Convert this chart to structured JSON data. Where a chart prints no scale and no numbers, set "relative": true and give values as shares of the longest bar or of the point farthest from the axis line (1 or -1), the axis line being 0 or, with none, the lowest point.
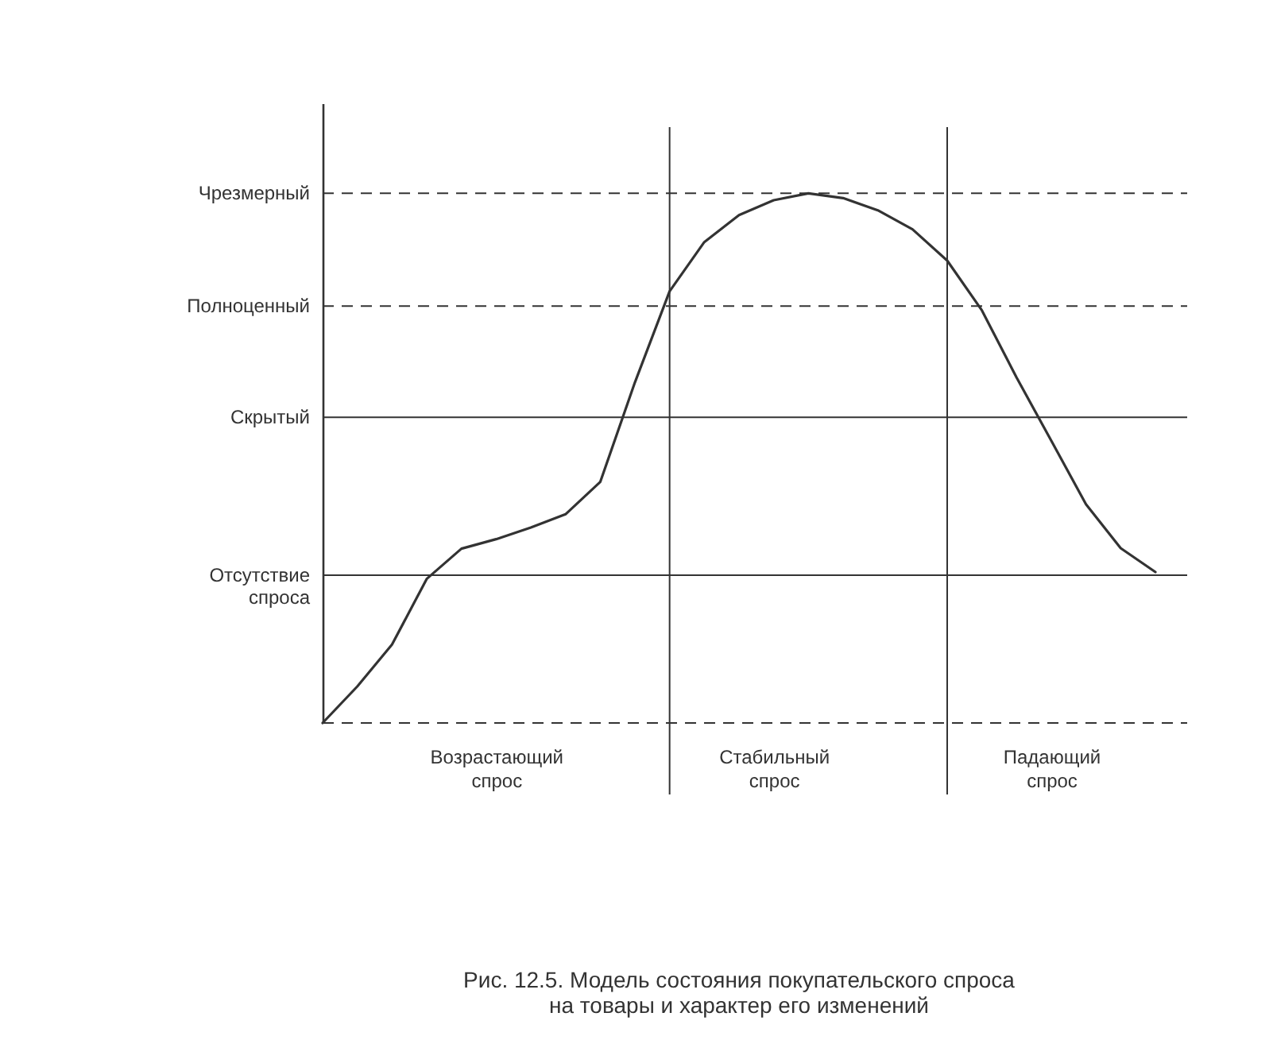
{
  "chart_data": {
    "type": "line",
    "relative": true,
    "tick_labels": "x",
    "title": "Рис. 12.5. Модель состояния покупательского спроса\nна товары и характер его изменений",
    "categories": [
      null,
      null,
      null,
      null,
      null,
      "Возрастающий\nспрос",
      null,
      null,
      null,
      null,
      null,
      null,
      null,
      "Стабильный\nспрос",
      null,
      null,
      null,
      null,
      null,
      null,
      null,
      "Падающий\nспрос",
      null,
      null,
      null
    ],
    "series": [
      {
        "color": "#333333",
        "values": [
          0,
          0.069,
          0.148,
          0.272,
          0.329,
          0.347,
          0.369,
          0.394,
          0.455,
          0.643,
          0.815,
          0.908,
          0.959,
          0.987,
          1.0,
          0.991,
          0.968,
          0.932,
          0.873,
          0.779,
          0.652,
          0.533,
          0.413,
          0.33,
          0.285
        ]
      }
    ],
    "ref_lines": [
      {
        "axis": "y",
        "value": 1.0,
        "label": "Чрезмерный",
        "line_style": "dashed"
      },
      {
        "axis": "y",
        "value": 0.787,
        "label": "Полноценный",
        "line_style": "dashed"
      },
      {
        "axis": "y",
        "value": 0.577,
        "label": "Скрытый",
        "line_style": "solid"
      },
      {
        "axis": "y",
        "value": 0.279,
        "label": "Отсутствие\nспроса",
        "line_style": "solid"
      },
      {
        "axis": "y",
        "value": 0,
        "line_style": "dashed"
      }
    ]
  }
}
